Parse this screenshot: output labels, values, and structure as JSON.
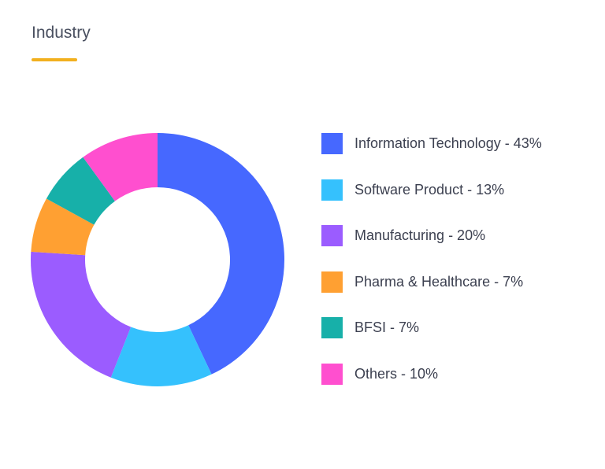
{
  "header": {
    "title": "Industry",
    "accent_color": "#f2b01e"
  },
  "chart_data": {
    "type": "pie",
    "variant": "donut",
    "title": "Industry",
    "legend_position": "right",
    "slices": [
      {
        "label": "Information Technology - 43%",
        "category": "Information Technology",
        "value": 43,
        "color": "#4668ff"
      },
      {
        "label": "Software Product - 13%",
        "category": "Software Product",
        "value": 13,
        "color": "#35c1fd"
      },
      {
        "label": "Manufacturing - 20%",
        "category": "Manufacturing",
        "value": 20,
        "color": "#9b5cff"
      },
      {
        "label": "Pharma & Healthcare - 7%",
        "category": "Pharma & Healthcare",
        "value": 7,
        "color": "#ffa032"
      },
      {
        "label": "BFSI - 7%",
        "category": "BFSI",
        "value": 7,
        "color": "#17b0a9"
      },
      {
        "label": "Others - 10%",
        "category": "Others",
        "value": 10,
        "color": "#ff4fcf"
      }
    ]
  }
}
